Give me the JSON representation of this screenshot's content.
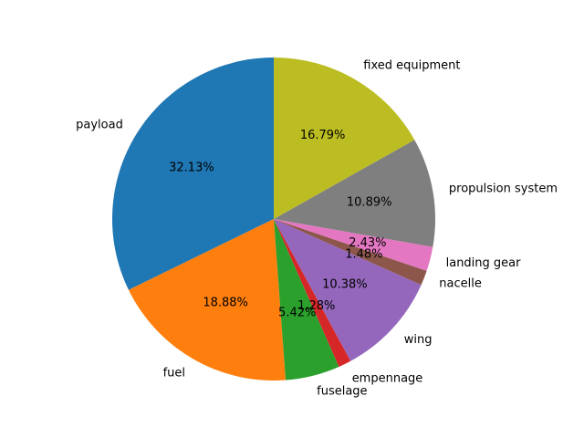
{
  "chart_data": {
    "type": "pie",
    "title": "",
    "start_angle": 90,
    "direction": "counterclockwise",
    "slices": [
      {
        "label": "payload",
        "value": 32.13,
        "pct_label": "32.13%",
        "color": "#1f77b4"
      },
      {
        "label": "fuel",
        "value": 18.88,
        "pct_label": "18.88%",
        "color": "#ff7f0e"
      },
      {
        "label": "fuselage",
        "value": 5.42,
        "pct_label": "5.42%",
        "color": "#2ca02c"
      },
      {
        "label": "empennage",
        "value": 1.28,
        "pct_label": "1.28%",
        "color": "#d62728"
      },
      {
        "label": "wing",
        "value": 10.38,
        "pct_label": "10.38%",
        "color": "#9467bd"
      },
      {
        "label": "nacelle",
        "value": 1.48,
        "pct_label": "1.48%",
        "color": "#8c564b"
      },
      {
        "label": "landing gear",
        "value": 2.43,
        "pct_label": "2.43%",
        "color": "#e377c2"
      },
      {
        "label": "propulsion system",
        "value": 10.89,
        "pct_label": "10.89%",
        "color": "#7f7f7f"
      },
      {
        "label": "fixed equipment",
        "value": 16.79,
        "pct_label": "16.79%",
        "color": "#bcbd22"
      }
    ]
  }
}
